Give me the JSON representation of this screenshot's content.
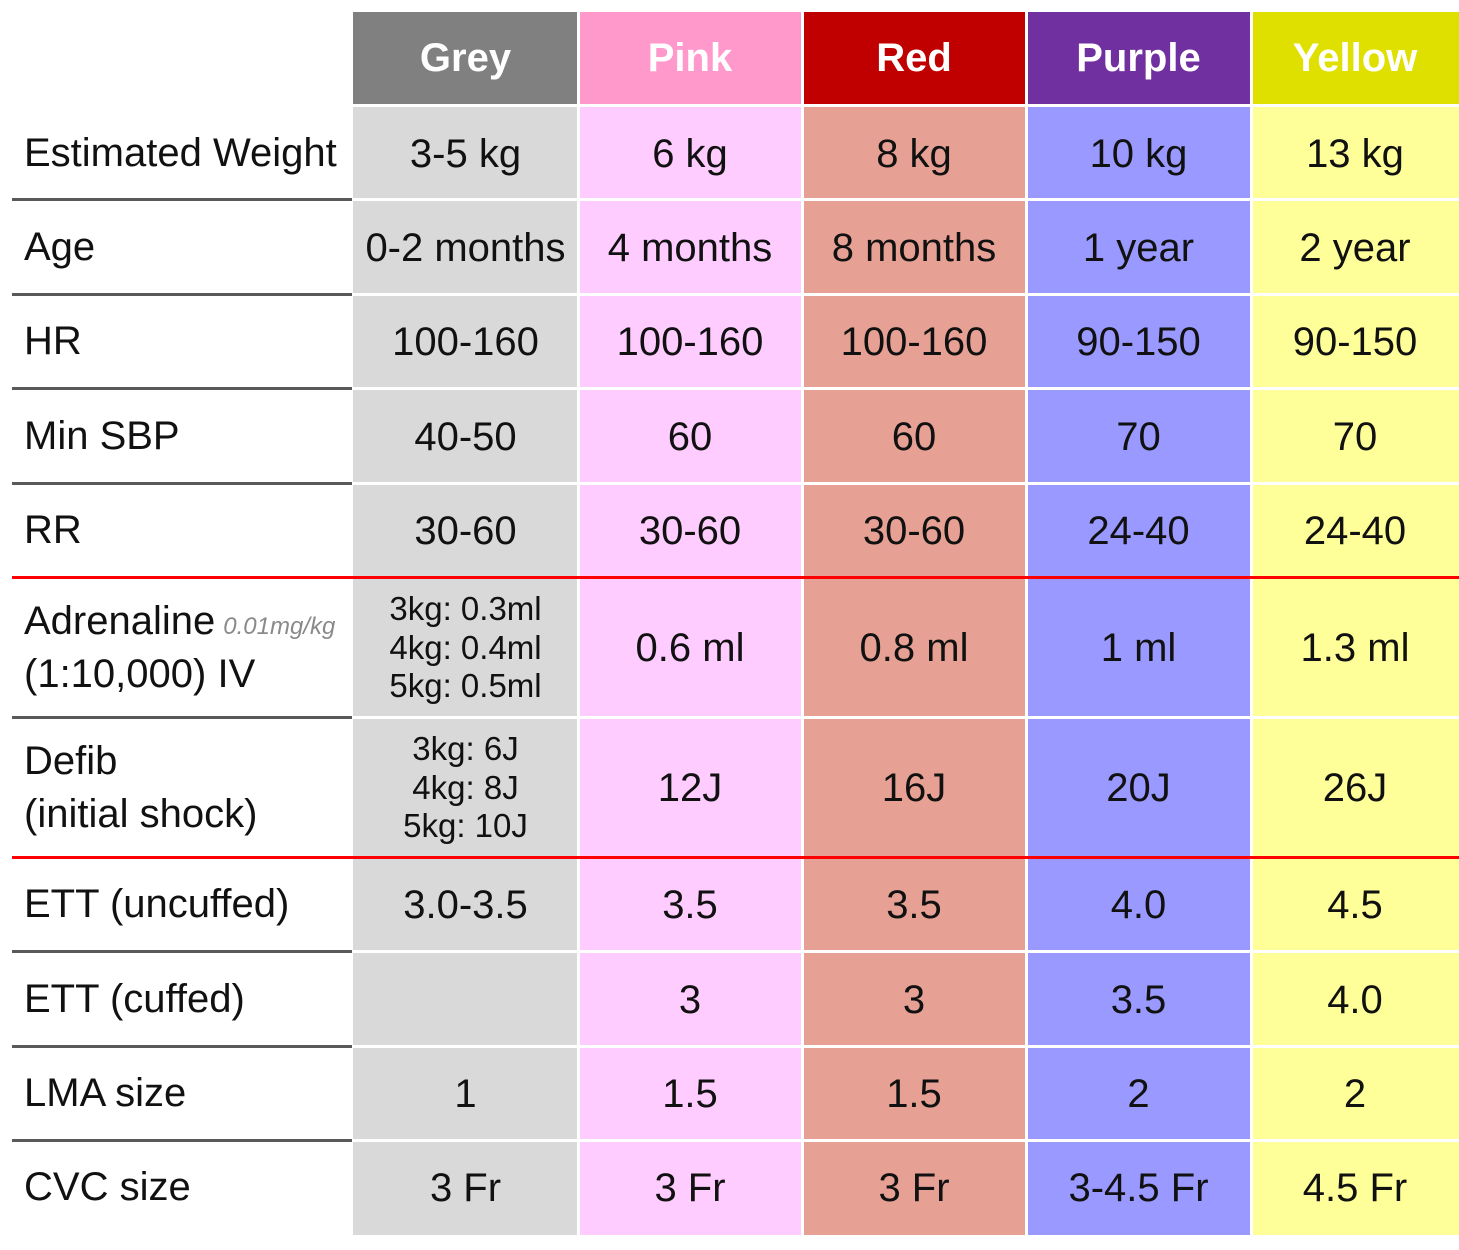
{
  "colors": {
    "header_bg": [
      "#808080",
      "#ff99cc",
      "#c00000",
      "#7030a0",
      "#e0e000"
    ],
    "column_bg": [
      "#d9d9d9",
      "#ffccff",
      "#e6a194",
      "#9999ff",
      "#ffff99"
    ],
    "label_divider": "#595959",
    "section_divider": "#ff0000",
    "cell_divider": "#ffffff"
  },
  "header": {
    "columns": [
      "Grey",
      "Pink",
      "Red",
      "Purple",
      "Yellow"
    ]
  },
  "rows": [
    {
      "label": [
        "Estimated Weight"
      ],
      "cells": [
        [
          "3-5 kg"
        ],
        [
          "6 kg"
        ],
        [
          "8 kg"
        ],
        [
          "10 kg"
        ],
        [
          "13 kg"
        ]
      ]
    },
    {
      "label": [
        "Age"
      ],
      "cells": [
        [
          "0-2 months"
        ],
        [
          "4 months"
        ],
        [
          "8 months"
        ],
        [
          "1 year"
        ],
        [
          "2 year"
        ]
      ]
    },
    {
      "label": [
        "HR"
      ],
      "cells": [
        [
          "100-160"
        ],
        [
          "100-160"
        ],
        [
          "100-160"
        ],
        [
          "90-150"
        ],
        [
          "90-150"
        ]
      ]
    },
    {
      "label": [
        "Min SBP"
      ],
      "cells": [
        [
          "40-50"
        ],
        [
          "60"
        ],
        [
          "60"
        ],
        [
          "70"
        ],
        [
          "70"
        ]
      ]
    },
    {
      "label": [
        "RR"
      ],
      "cells": [
        [
          "30-60"
        ],
        [
          "30-60"
        ],
        [
          "30-60"
        ],
        [
          "24-40"
        ],
        [
          "24-40"
        ]
      ]
    },
    {
      "label": [
        "Adrenaline",
        "(1:10,000) IV"
      ],
      "label_note": "0.01mg/kg",
      "cells": [
        [
          "3kg: 0.3ml",
          "4kg: 0.4ml",
          "5kg: 0.5ml"
        ],
        [
          "0.6 ml"
        ],
        [
          "0.8 ml"
        ],
        [
          "1 ml"
        ],
        [
          "1.3 ml"
        ]
      ]
    },
    {
      "label": [
        "Defib",
        "(initial shock)"
      ],
      "cells": [
        [
          "3kg: 6J",
          "4kg: 8J",
          "5kg: 10J"
        ],
        [
          "12J"
        ],
        [
          "16J"
        ],
        [
          "20J"
        ],
        [
          "26J"
        ]
      ]
    },
    {
      "label": [
        "ETT (uncuffed)"
      ],
      "cells": [
        [
          "3.0-3.5"
        ],
        [
          "3.5"
        ],
        [
          "3.5"
        ],
        [
          "4.0"
        ],
        [
          "4.5"
        ]
      ]
    },
    {
      "label": [
        "ETT (cuffed)"
      ],
      "cells": [
        [
          ""
        ],
        [
          "3"
        ],
        [
          "3"
        ],
        [
          "3.5"
        ],
        [
          "4.0"
        ]
      ]
    },
    {
      "label": [
        "LMA size"
      ],
      "cells": [
        [
          "1"
        ],
        [
          "1.5"
        ],
        [
          "1.5"
        ],
        [
          "2"
        ],
        [
          "2"
        ]
      ]
    },
    {
      "label": [
        "CVC size"
      ],
      "cells": [
        [
          "3 Fr"
        ],
        [
          "3 Fr"
        ],
        [
          "3 Fr"
        ],
        [
          "3-4.5 Fr"
        ],
        [
          "4.5 Fr"
        ]
      ]
    }
  ]
}
